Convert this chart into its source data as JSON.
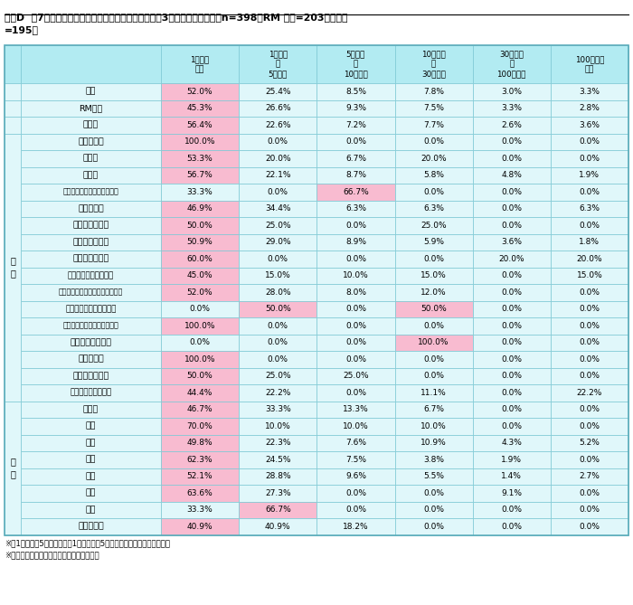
{
  "title_line1": "図表D  第7回「企業の取引リスクに対する意識」調査／3年間の貸倒れ金額",
  "title_suffix": "（n=398、RM 会員=203、非会員",
  "title_line2": "=195）",
  "footnote1": "※「1百万円～5百万円」は、1百万円以上5百万円未満を表す。他も同様。",
  "footnote2": "※背景色は、各区分で最も回答率が高い項目",
  "col_headers": [
    "1百万円\n未満",
    "1百万円\n～\n5百万円",
    "5百万円\n～\n10百万円",
    "10百万円\n～\n30百万円",
    "30百万円\n～\n100百万円",
    "100百万円\n以上"
  ],
  "rows": [
    {
      "cat1": "",
      "cat2": "全体",
      "vals": [
        52.0,
        25.4,
        8.5,
        7.8,
        3.0,
        3.3
      ],
      "highlight": [
        0
      ]
    },
    {
      "cat1": "",
      "cat2": "RM会員",
      "vals": [
        45.3,
        26.6,
        9.3,
        7.5,
        3.3,
        2.8
      ],
      "highlight": [
        0
      ]
    },
    {
      "cat1": "",
      "cat2": "非会員",
      "vals": [
        56.4,
        22.6,
        7.2,
        7.7,
        2.6,
        3.6
      ],
      "highlight": [
        0
      ]
    },
    {
      "cat1": "業種",
      "cat2": "農業、林業",
      "vals": [
        100.0,
        0.0,
        0.0,
        0.0,
        0.0,
        0.0
      ],
      "highlight": [
        0
      ]
    },
    {
      "cat1": "",
      "cat2": "建設業",
      "vals": [
        53.3,
        20.0,
        6.7,
        20.0,
        0.0,
        0.0
      ],
      "highlight": [
        0
      ]
    },
    {
      "cat1": "",
      "cat2": "製造業",
      "vals": [
        56.7,
        22.1,
        8.7,
        5.8,
        4.8,
        1.9
      ],
      "highlight": [
        0
      ]
    },
    {
      "cat1": "",
      "cat2": "電気・ガス・熱供給・水道業",
      "vals": [
        33.3,
        0.0,
        66.7,
        0.0,
        0.0,
        0.0
      ],
      "highlight": [
        2
      ]
    },
    {
      "cat1": "",
      "cat2": "情報通信業",
      "vals": [
        46.9,
        34.4,
        6.3,
        6.3,
        0.0,
        6.3
      ],
      "highlight": [
        0
      ]
    },
    {
      "cat1": "",
      "cat2": "運輸業、郵便業",
      "vals": [
        50.0,
        25.0,
        0.0,
        25.0,
        0.0,
        0.0
      ],
      "highlight": [
        0
      ]
    },
    {
      "cat1": "",
      "cat2": "卸売業、小売業",
      "vals": [
        50.9,
        29.0,
        8.9,
        5.9,
        3.6,
        1.8
      ],
      "highlight": [
        0
      ]
    },
    {
      "cat1": "",
      "cat2": "金融業、保険業",
      "vals": [
        60.0,
        0.0,
        0.0,
        0.0,
        20.0,
        20.0
      ],
      "highlight": [
        0
      ]
    },
    {
      "cat1": "",
      "cat2": "不動産業、物品賣貸業",
      "vals": [
        45.0,
        15.0,
        10.0,
        15.0,
        0.0,
        15.0
      ],
      "highlight": [
        0
      ]
    },
    {
      "cat1": "",
      "cat2": "学術研究、専門・技術サービス業",
      "vals": [
        52.0,
        28.0,
        8.0,
        12.0,
        0.0,
        0.0
      ],
      "highlight": [
        0
      ]
    },
    {
      "cat1": "",
      "cat2": "宿泊業、飲食サービス業",
      "vals": [
        0.0,
        50.0,
        0.0,
        50.0,
        0.0,
        0.0
      ],
      "highlight": [
        1,
        3
      ]
    },
    {
      "cat1": "",
      "cat2": "生活関連サービス業、娯楽業",
      "vals": [
        100.0,
        0.0,
        0.0,
        0.0,
        0.0,
        0.0
      ],
      "highlight": [
        0
      ]
    },
    {
      "cat1": "",
      "cat2": "教育、学習支援業",
      "vals": [
        0.0,
        0.0,
        0.0,
        100.0,
        0.0,
        0.0
      ],
      "highlight": [
        3
      ]
    },
    {
      "cat1": "",
      "cat2": "医療、福祉",
      "vals": [
        100.0,
        0.0,
        0.0,
        0.0,
        0.0,
        0.0
      ],
      "highlight": [
        0
      ]
    },
    {
      "cat1": "",
      "cat2": "複合サービス業",
      "vals": [
        50.0,
        25.0,
        25.0,
        0.0,
        0.0,
        0.0
      ],
      "highlight": [
        0
      ]
    },
    {
      "cat1": "",
      "cat2": "その他のサービス業",
      "vals": [
        44.4,
        22.2,
        0.0,
        11.1,
        0.0,
        22.2
      ],
      "highlight": [
        0
      ]
    },
    {
      "cat1": "地域",
      "cat2": "北海道",
      "vals": [
        46.7,
        33.3,
        13.3,
        6.7,
        0.0,
        0.0
      ],
      "highlight": [
        0
      ]
    },
    {
      "cat1": "",
      "cat2": "東北",
      "vals": [
        70.0,
        10.0,
        10.0,
        10.0,
        0.0,
        0.0
      ],
      "highlight": [
        0
      ]
    },
    {
      "cat1": "",
      "cat2": "関東",
      "vals": [
        49.8,
        22.3,
        7.6,
        10.9,
        4.3,
        5.2
      ],
      "highlight": [
        0
      ]
    },
    {
      "cat1": "",
      "cat2": "中部",
      "vals": [
        62.3,
        24.5,
        7.5,
        3.8,
        1.9,
        0.0
      ],
      "highlight": [
        0
      ]
    },
    {
      "cat1": "",
      "cat2": "近畿",
      "vals": [
        52.1,
        28.8,
        9.6,
        5.5,
        1.4,
        2.7
      ],
      "highlight": [
        0
      ]
    },
    {
      "cat1": "",
      "cat2": "中国",
      "vals": [
        63.6,
        27.3,
        0.0,
        0.0,
        9.1,
        0.0
      ],
      "highlight": [
        0
      ]
    },
    {
      "cat1": "",
      "cat2": "四国",
      "vals": [
        33.3,
        66.7,
        0.0,
        0.0,
        0.0,
        0.0
      ],
      "highlight": [
        1
      ]
    },
    {
      "cat1": "",
      "cat2": "九州・沖縄",
      "vals": [
        40.9,
        40.9,
        18.2,
        0.0,
        0.0,
        0.0
      ],
      "highlight": [
        0
      ]
    }
  ],
  "bg_header": "#b2ebf2",
  "bg_cell": "#e0f7fa",
  "bg_highlight_pink": "#f8bbd0",
  "border_color": "#7cc8d4"
}
